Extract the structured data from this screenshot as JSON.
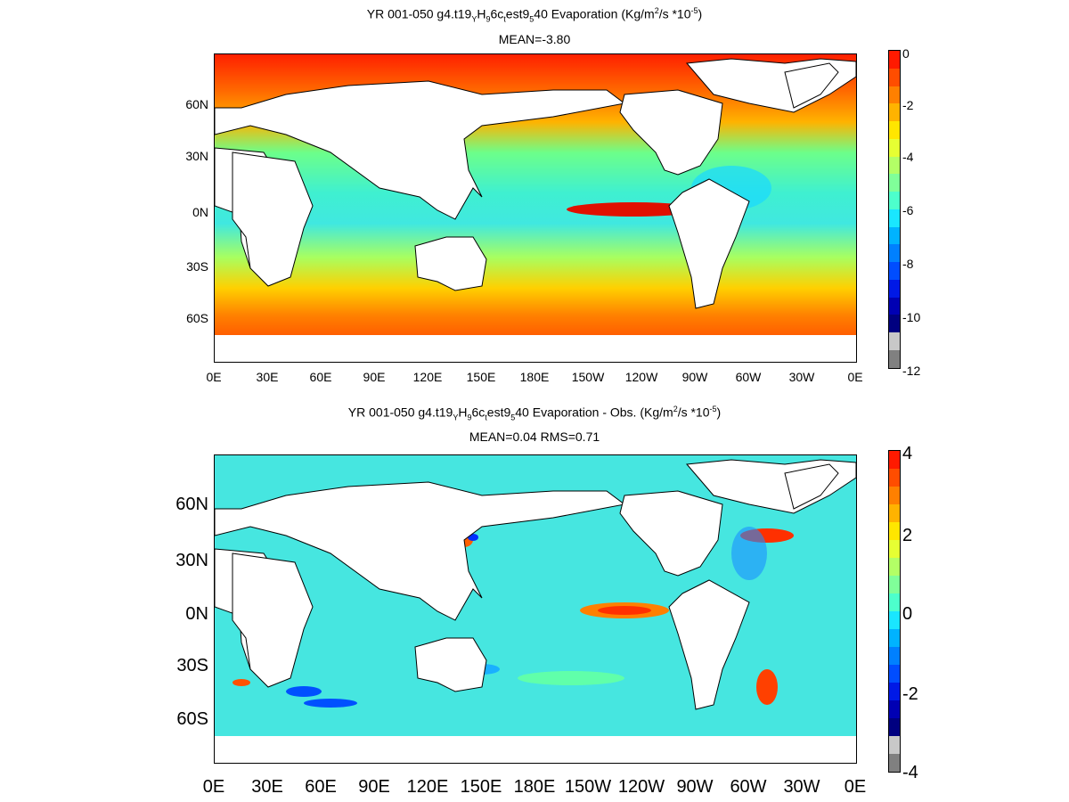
{
  "panels": [
    {
      "title": {
        "p1": "YR 001-050 g4.t19",
        "s1": "Y",
        "p2": "H",
        "s2": "9",
        "p3": "6c",
        "s3": "t",
        "p4": "est9",
        "s4": "5",
        "p5": "40  Evaporation (Kg/m",
        "sup1": "2",
        "p6": "/s *10",
        "sup2": "-5",
        "p7": ")"
      },
      "stats": "MEAN=-3.80",
      "lat_labels": [
        "60N",
        "30N",
        "0N",
        "30S",
        "60S"
      ],
      "lon_labels": [
        "0E",
        "30E",
        "60E",
        "90E",
        "120E",
        "150E",
        "180E",
        "150W",
        "120W",
        "90W",
        "60W",
        "30W",
        "0E"
      ],
      "colorbar_ticks": [
        "0",
        "-2",
        "-4",
        "-6",
        "-8",
        "-10",
        "-12"
      ],
      "colorbar_colors": [
        "#ff1a00",
        "#ff4d00",
        "#ff8000",
        "#ffb300",
        "#ffe600",
        "#e6ff33",
        "#b3ff66",
        "#80ff99",
        "#4dffcc",
        "#1ae6ff",
        "#00b3ff",
        "#0080ff",
        "#004dff",
        "#0019e6",
        "#0000b3",
        "#000080",
        "#c8c8c8",
        "#808080"
      ]
    },
    {
      "title": {
        "p1": "YR 001-050 g4.t19",
        "s1": "Y",
        "p2": "H",
        "s2": "9",
        "p3": "6c",
        "s3": "t",
        "p4": "est9",
        "s4": "5",
        "p5": "40 Evaporation - Obs. (Kg/m",
        "sup1": "2",
        "p6": "/s *10",
        "sup2": "-5",
        "p7": ")"
      },
      "stats": "MEAN=0.04   RMS=0.71",
      "lat_labels": [
        "60N",
        "30N",
        "0N",
        "30S",
        "60S"
      ],
      "lon_labels": [
        "0E",
        "30E",
        "60E",
        "90E",
        "120E",
        "150E",
        "180E",
        "150W",
        "120W",
        "90W",
        "60W",
        "30W",
        "0E"
      ],
      "colorbar_ticks": [
        "4",
        "2",
        "0",
        "-2",
        "-4"
      ],
      "colorbar_colors": [
        "#ff1a00",
        "#ff4d00",
        "#ff8000",
        "#ffb300",
        "#ffe600",
        "#e6ff33",
        "#b3ff66",
        "#80ff99",
        "#4dffcc",
        "#1ae6ff",
        "#00b3ff",
        "#0080ff",
        "#004dff",
        "#0019e6",
        "#0000b3",
        "#000080",
        "#c8c8c8",
        "#808080"
      ]
    }
  ]
}
